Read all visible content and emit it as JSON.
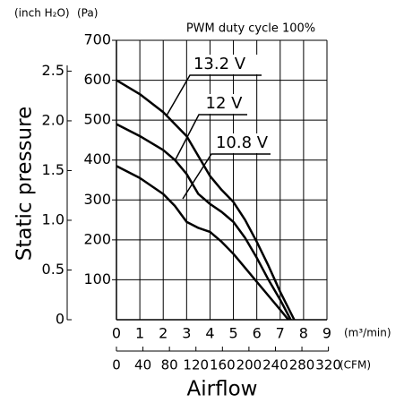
{
  "chart_data": {
    "type": "line",
    "title": "PWM duty cycle 100%",
    "ylabel": "Static pressure",
    "xlabel": "Airflow",
    "y_unit": "(Pa)",
    "y2_unit": "(inch H₂O)",
    "x_unit": "(m³/min)",
    "x2_unit": "(CFM)",
    "xlim": [
      0,
      9
    ],
    "xticks": [
      0,
      1,
      2,
      3,
      4,
      5,
      6,
      7,
      8,
      9
    ],
    "x2lim": [
      0,
      317.8
    ],
    "x2ticks": [
      0,
      40,
      80,
      120,
      160,
      200,
      240,
      280,
      320
    ],
    "ylim": [
      0,
      700
    ],
    "yticks": [
      100,
      200,
      300,
      400,
      500,
      600,
      700
    ],
    "y2lim": [
      0,
      2.81
    ],
    "y2ticks": [
      0,
      0.5,
      {
        "value": 1,
        "label": "1.0"
      },
      1.5,
      {
        "value": 2,
        "label": "2.0"
      },
      2.5
    ],
    "grid": true,
    "series": [
      {
        "name": "13.2 V",
        "color": "#000000",
        "x": [
          0,
          1,
          2,
          3,
          3.5,
          4,
          4.5,
          5,
          5.5,
          6,
          6.5,
          7,
          7.6
        ],
        "values": [
          600,
          565,
          520,
          460,
          410,
          360,
          325,
          295,
          250,
          195,
          135,
          70,
          0
        ]
      },
      {
        "name": "12 V",
        "color": "#000000",
        "x": [
          0,
          1,
          2,
          2.5,
          3,
          3.5,
          4,
          4.5,
          5,
          5.5,
          6,
          6.5,
          7,
          7.45
        ],
        "values": [
          490,
          460,
          425,
          400,
          365,
          315,
          290,
          270,
          245,
          205,
          155,
          100,
          50,
          0
        ]
      },
      {
        "name": "10.8 V",
        "color": "#000000",
        "x": [
          0,
          1,
          2,
          2.5,
          3,
          3.5,
          4,
          4.5,
          5,
          5.5,
          6,
          6.5,
          7,
          7.35
        ],
        "values": [
          385,
          355,
          315,
          285,
          245,
          230,
          220,
          195,
          165,
          130,
          95,
          60,
          25,
          0
        ]
      }
    ]
  }
}
